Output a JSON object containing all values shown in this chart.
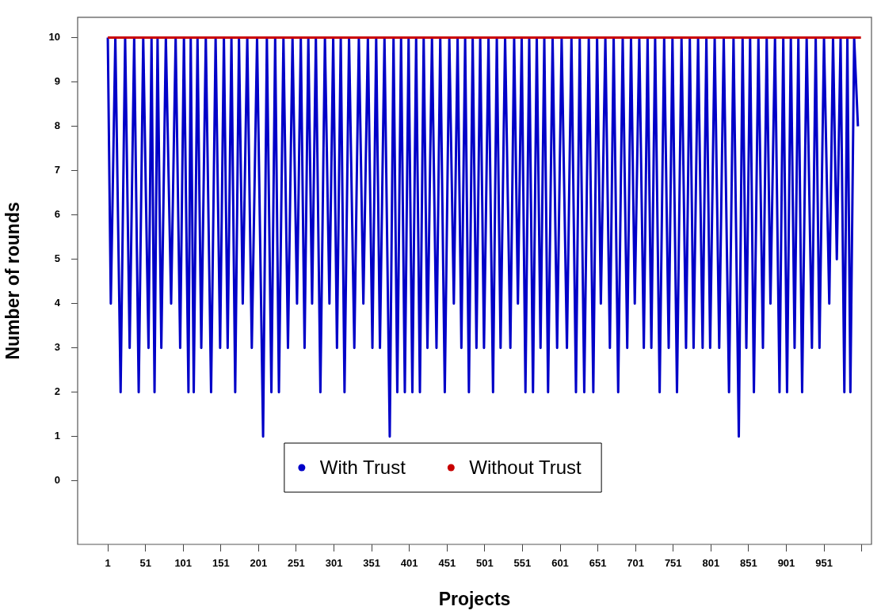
{
  "chart_data": {
    "type": "line",
    "xlabel": "Projects",
    "ylabel": "Number of rounds",
    "xlim": [
      -39,
      1014
    ],
    "ylim": [
      -1.43,
      10.46
    ],
    "xticks": [
      1,
      51,
      101,
      151,
      201,
      251,
      301,
      351,
      401,
      451,
      501,
      551,
      601,
      651,
      701,
      751,
      801,
      851,
      901,
      951,
      {
        "value": 1001,
        "label": null
      }
    ],
    "yticks": [
      0,
      1,
      2,
      3,
      4,
      5,
      6,
      7,
      8,
      9,
      10
    ],
    "grid": false,
    "legend": "bottom",
    "marker": "none",
    "line_style": "solid",
    "series": [
      {
        "name": "With Trust",
        "color": "#0000c8",
        "x": [
          1,
          5,
          11,
          18,
          24,
          30,
          36,
          42,
          48,
          55,
          59,
          63,
          67,
          72,
          78,
          85,
          91,
          97,
          102,
          108,
          111,
          115,
          120,
          125,
          131,
          138,
          144,
          150,
          155,
          160,
          165,
          170,
          175,
          180,
          186,
          192,
          199,
          207,
          212,
          218,
          223,
          228,
          234,
          240,
          246,
          252,
          257,
          262,
          267,
          272,
          277,
          283,
          289,
          295,
          300,
          305,
          310,
          315,
          321,
          328,
          334,
          340,
          346,
          352,
          357,
          362,
          368,
          375,
          380,
          385,
          390,
          395,
          400,
          405,
          410,
          415,
          420,
          425,
          431,
          437,
          442,
          448,
          454,
          460,
          465,
          470,
          475,
          480,
          485,
          490,
          495,
          500,
          506,
          512,
          517,
          522,
          528,
          535,
          540,
          545,
          550,
          555,
          560,
          565,
          570,
          575,
          580,
          585,
          591,
          597,
          603,
          610,
          616,
          622,
          627,
          633,
          639,
          645,
          650,
          655,
          661,
          667,
          672,
          678,
          684,
          690,
          695,
          700,
          706,
          712,
          717,
          722,
          727,
          733,
          739,
          745,
          750,
          756,
          762,
          768,
          773,
          778,
          784,
          790,
          795,
          800,
          806,
          812,
          818,
          825,
          831,
          838,
          843,
          848,
          853,
          858,
          864,
          870,
          875,
          880,
          886,
          892,
          897,
          902,
          907,
          912,
          917,
          922,
          928,
          935,
          940,
          945,
          951,
          958,
          963,
          968,
          973,
          978,
          982,
          986,
          991,
          996
        ],
        "values": [
          10,
          4,
          10,
          2,
          10,
          3,
          10,
          2,
          10,
          3,
          10,
          2,
          10,
          3,
          10,
          4,
          10,
          3,
          10,
          2,
          10,
          2,
          10,
          3,
          10,
          2,
          10,
          3,
          10,
          3,
          10,
          2,
          10,
          4,
          10,
          3,
          10,
          1,
          10,
          2,
          10,
          2,
          10,
          3,
          10,
          4,
          10,
          3,
          10,
          4,
          10,
          2,
          10,
          4,
          10,
          3,
          10,
          2,
          10,
          3,
          10,
          4,
          10,
          3,
          10,
          3,
          10,
          1,
          10,
          2,
          10,
          2,
          10,
          2,
          10,
          2,
          10,
          3,
          10,
          3,
          10,
          2,
          10,
          4,
          10,
          3,
          10,
          2,
          10,
          3,
          10,
          3,
          10,
          2,
          10,
          3,
          10,
          3,
          10,
          4,
          10,
          2,
          10,
          2,
          10,
          3,
          10,
          2,
          10,
          3,
          10,
          3,
          10,
          2,
          10,
          2,
          10,
          2,
          10,
          4,
          10,
          3,
          10,
          2,
          10,
          3,
          10,
          4,
          10,
          3,
          10,
          3,
          10,
          2,
          10,
          3,
          10,
          2,
          10,
          3,
          10,
          3,
          10,
          3,
          10,
          3,
          10,
          3,
          10,
          2,
          10,
          1,
          10,
          3,
          10,
          2,
          10,
          3,
          10,
          4,
          10,
          2,
          10,
          2,
          10,
          3,
          10,
          2,
          10,
          3,
          10,
          3,
          10,
          4,
          10,
          5,
          10,
          2,
          10,
          2,
          10,
          8
        ]
      },
      {
        "name": "Without Trust",
        "color": "#c80000",
        "x": [
          1,
          1000
        ],
        "values": [
          10,
          10
        ]
      }
    ]
  }
}
